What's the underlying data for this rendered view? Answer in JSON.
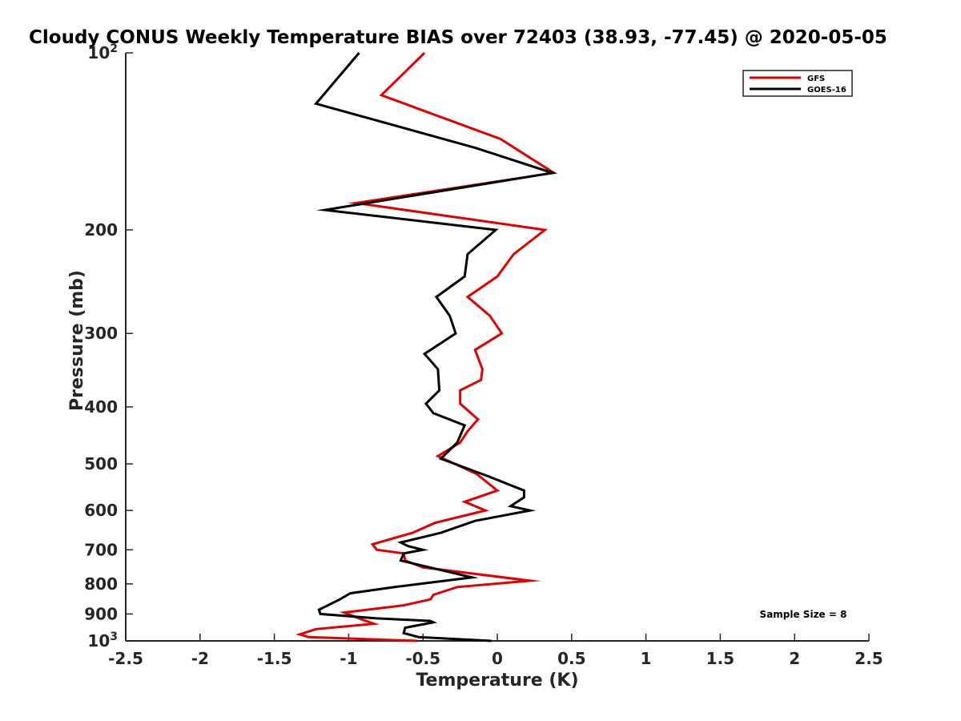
{
  "chart_data": {
    "type": "line",
    "title": "Cloudy CONUS Weekly Temperature BIAS over 72403 (38.93, -77.45) @ 2020-05-05",
    "xlabel": "Temperature (K)",
    "ylabel": "Pressure (mb)",
    "xlim": [
      -2.5,
      2.5
    ],
    "ylim": [
      100,
      1000
    ],
    "y_scale": "log",
    "y_reversed": true,
    "grid": false,
    "legend_position": "top-right",
    "x_ticks": [
      "-2.5",
      "-2",
      "-1.5",
      "-1",
      "-0.5",
      "0",
      "0.5",
      "1",
      "1.5",
      "2",
      "2.5"
    ],
    "x_tick_values": [
      -2.5,
      -2,
      -1.5,
      -1,
      -0.5,
      0,
      0.5,
      1,
      1.5,
      2,
      2.5
    ],
    "y_ticks": [
      {
        "value": 100,
        "base": "10",
        "exp": "2"
      },
      {
        "value": 200,
        "label": "200"
      },
      {
        "value": 300,
        "label": "300"
      },
      {
        "value": 400,
        "label": "400"
      },
      {
        "value": 500,
        "label": "500"
      },
      {
        "value": 600,
        "label": "600"
      },
      {
        "value": 700,
        "label": "700"
      },
      {
        "value": 800,
        "label": "800"
      },
      {
        "value": 900,
        "label": "900"
      },
      {
        "value": 1000,
        "base": "10",
        "exp": "3"
      }
    ],
    "annotation": "Sample Size = 8",
    "series": [
      {
        "name": "GFS",
        "color": "#e00000",
        "points": [
          [
            -0.49,
            100
          ],
          [
            -0.78,
            118
          ],
          [
            0.02,
            140
          ],
          [
            0.38,
            160
          ],
          [
            -0.95,
            180
          ],
          [
            0.32,
            200
          ],
          [
            0.11,
            220
          ],
          [
            0.0,
            240
          ],
          [
            -0.2,
            260
          ],
          [
            -0.05,
            280
          ],
          [
            0.03,
            300
          ],
          [
            -0.15,
            320
          ],
          [
            -0.1,
            345
          ],
          [
            -0.11,
            360
          ],
          [
            -0.25,
            375
          ],
          [
            -0.25,
            395
          ],
          [
            -0.13,
            420
          ],
          [
            -0.2,
            440
          ],
          [
            -0.25,
            460
          ],
          [
            -0.4,
            485
          ],
          [
            -0.14,
            520
          ],
          [
            0.0,
            555
          ],
          [
            -0.22,
            580
          ],
          [
            -0.08,
            600
          ],
          [
            -0.42,
            630
          ],
          [
            -0.57,
            655
          ],
          [
            -0.84,
            685
          ],
          [
            -0.81,
            700
          ],
          [
            -0.63,
            710
          ],
          [
            -0.62,
            730
          ],
          [
            -0.5,
            750
          ],
          [
            0.22,
            790
          ],
          [
            -0.27,
            810
          ],
          [
            -0.43,
            835
          ],
          [
            -0.45,
            850
          ],
          [
            -0.63,
            870
          ],
          [
            -1.03,
            895
          ],
          [
            -0.91,
            920
          ],
          [
            -0.83,
            935
          ],
          [
            -1.22,
            955
          ],
          [
            -1.33,
            975
          ],
          [
            -1.27,
            985
          ],
          [
            -0.54,
            1000
          ]
        ]
      },
      {
        "name": "GOES-16",
        "color": "#000000",
        "points": [
          [
            -0.93,
            100
          ],
          [
            -1.22,
            122
          ],
          [
            -0.15,
            145
          ],
          [
            0.37,
            160
          ],
          [
            -1.16,
            185
          ],
          [
            -0.01,
            200
          ],
          [
            -0.2,
            220
          ],
          [
            -0.22,
            240
          ],
          [
            -0.41,
            260
          ],
          [
            -0.32,
            280
          ],
          [
            -0.28,
            300
          ],
          [
            -0.49,
            325
          ],
          [
            -0.4,
            345
          ],
          [
            -0.39,
            375
          ],
          [
            -0.48,
            395
          ],
          [
            -0.43,
            410
          ],
          [
            -0.22,
            430
          ],
          [
            -0.27,
            460
          ],
          [
            -0.38,
            490
          ],
          [
            -0.06,
            525
          ],
          [
            0.18,
            555
          ],
          [
            0.18,
            570
          ],
          [
            0.09,
            590
          ],
          [
            0.22,
            600
          ],
          [
            -0.15,
            625
          ],
          [
            -0.38,
            655
          ],
          [
            -0.65,
            680
          ],
          [
            -0.6,
            690
          ],
          [
            -0.5,
            700
          ],
          [
            -0.63,
            710
          ],
          [
            -0.65,
            730
          ],
          [
            -0.17,
            780
          ],
          [
            -0.69,
            810
          ],
          [
            -0.99,
            830
          ],
          [
            -1.06,
            850
          ],
          [
            -1.2,
            885
          ],
          [
            -1.19,
            900
          ],
          [
            -0.82,
            915
          ],
          [
            -0.45,
            925
          ],
          [
            -0.43,
            930
          ],
          [
            -0.62,
            950
          ],
          [
            -0.63,
            970
          ],
          [
            -0.53,
            985
          ],
          [
            -0.04,
            1000
          ]
        ]
      }
    ]
  }
}
